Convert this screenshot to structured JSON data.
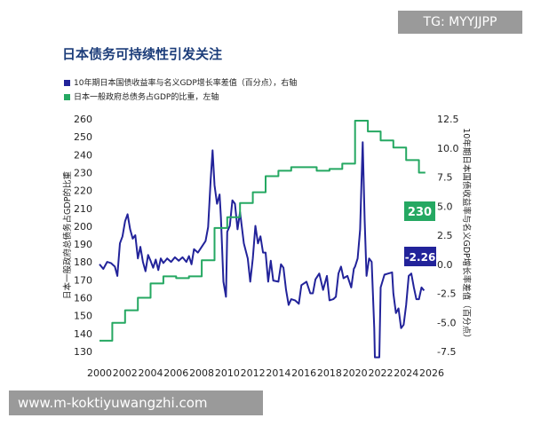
{
  "watermarks": {
    "top_right": "TG: MYYJJPP",
    "bottom_left": "www.m-koktiyuwangzhi.com"
  },
  "colors": {
    "navy": "#22239a",
    "green": "#25a862",
    "title": "#1c3d7a"
  },
  "chart_data": {
    "type": "line",
    "title": "日本债务可持续性引发关注",
    "ylabel": "日本一般政府总债务占GDP的比重",
    "y2label": "10年期日本国债收益率与名义GDP增长率差值（百分点）",
    "xlim": [
      2000,
      2026
    ],
    "ylim": [
      130,
      260
    ],
    "y2lim": [
      -7.5,
      12.5
    ],
    "x_ticks": [
      "2000",
      "2002",
      "2004",
      "2006",
      "2008",
      "2010",
      "2012",
      "2014",
      "2016",
      "2018",
      "2020",
      "2022",
      "2024",
      "2026"
    ],
    "y_ticks": [
      "260",
      "250",
      "240",
      "230",
      "220",
      "210",
      "200",
      "190",
      "180",
      "170",
      "160",
      "150",
      "140",
      "130"
    ],
    "y2_ticks": [
      "12.5",
      "10.0",
      "7.5",
      "5.0",
      "2.5",
      "0.0",
      "-2.5",
      "-5.0",
      "-7.5"
    ],
    "series": [
      {
        "name": "10年期日本国债收益率与名义GDP增长率差值（百分点），右轴",
        "axis": "right",
        "color": "#22239a",
        "end_label": "-2.26",
        "points": [
          [
            2000,
            0.0
          ],
          [
            2000.3,
            -0.4
          ],
          [
            2000.6,
            0.2
          ],
          [
            2000.9,
            0.1
          ],
          [
            2001.2,
            -0.2
          ],
          [
            2001.4,
            -1.0
          ],
          [
            2001.6,
            1.8
          ],
          [
            2001.8,
            2.4
          ],
          [
            2002.0,
            3.7
          ],
          [
            2002.2,
            4.3
          ],
          [
            2002.4,
            3.0
          ],
          [
            2002.6,
            2.2
          ],
          [
            2002.8,
            2.5
          ],
          [
            2003.0,
            0.5
          ],
          [
            2003.2,
            1.5
          ],
          [
            2003.4,
            0.2
          ],
          [
            2003.6,
            -0.6
          ],
          [
            2003.8,
            0.8
          ],
          [
            2004.0,
            0.3
          ],
          [
            2004.2,
            -0.3
          ],
          [
            2004.4,
            0.4
          ],
          [
            2004.6,
            -0.5
          ],
          [
            2004.8,
            0.5
          ],
          [
            2005.0,
            0.1
          ],
          [
            2005.3,
            0.5
          ],
          [
            2005.6,
            0.2
          ],
          [
            2005.9,
            0.6
          ],
          [
            2006.2,
            0.3
          ],
          [
            2006.5,
            0.6
          ],
          [
            2006.8,
            0.2
          ],
          [
            2007.0,
            0.7
          ],
          [
            2007.2,
            0.0
          ],
          [
            2007.4,
            1.3
          ],
          [
            2007.7,
            1.0
          ],
          [
            2008.0,
            1.5
          ],
          [
            2008.3,
            2.0
          ],
          [
            2008.5,
            3.2
          ],
          [
            2008.7,
            7.2
          ],
          [
            2008.85,
            9.8
          ],
          [
            2009.0,
            6.8
          ],
          [
            2009.2,
            5.2
          ],
          [
            2009.4,
            6.0
          ],
          [
            2009.5,
            4.0
          ],
          [
            2009.7,
            -1.5
          ],
          [
            2009.9,
            -2.8
          ],
          [
            2010.0,
            2.8
          ],
          [
            2010.2,
            3.3
          ],
          [
            2010.4,
            5.5
          ],
          [
            2010.6,
            5.2
          ],
          [
            2010.8,
            3.0
          ],
          [
            2011.0,
            4.5
          ],
          [
            2011.3,
            1.8
          ],
          [
            2011.6,
            0.5
          ],
          [
            2011.8,
            -1.5
          ],
          [
            2012.0,
            0.5
          ],
          [
            2012.2,
            3.3
          ],
          [
            2012.4,
            1.8
          ],
          [
            2012.6,
            2.4
          ],
          [
            2012.8,
            1.0
          ],
          [
            2013.0,
            1.0
          ],
          [
            2013.2,
            -1.5
          ],
          [
            2013.4,
            0.3
          ],
          [
            2013.6,
            -1.4
          ],
          [
            2014.0,
            -1.5
          ],
          [
            2014.2,
            0.0
          ],
          [
            2014.4,
            -0.3
          ],
          [
            2014.6,
            -2.2
          ],
          [
            2014.8,
            -3.5
          ],
          [
            2015.0,
            -3.0
          ],
          [
            2015.3,
            -3.1
          ],
          [
            2015.6,
            -3.4
          ],
          [
            2015.8,
            -1.8
          ],
          [
            2016.2,
            -1.5
          ],
          [
            2016.5,
            -2.5
          ],
          [
            2016.7,
            -2.5
          ],
          [
            2016.9,
            -1.3
          ],
          [
            2017.2,
            -0.8
          ],
          [
            2017.5,
            -2.2
          ],
          [
            2017.8,
            -1.0
          ],
          [
            2018.0,
            -3.1
          ],
          [
            2018.3,
            -3.0
          ],
          [
            2018.5,
            -2.8
          ],
          [
            2018.7,
            -0.8
          ],
          [
            2018.9,
            -0.2
          ],
          [
            2019.1,
            -1.2
          ],
          [
            2019.4,
            -1.0
          ],
          [
            2019.7,
            -2.0
          ],
          [
            2019.9,
            -0.4
          ],
          [
            2020.0,
            -0.2
          ],
          [
            2020.2,
            0.5
          ],
          [
            2020.4,
            3.0
          ],
          [
            2020.5,
            7.0
          ],
          [
            2020.6,
            10.5
          ],
          [
            2020.75,
            3.8
          ],
          [
            2020.9,
            -1.0
          ],
          [
            2021.1,
            0.5
          ],
          [
            2021.3,
            0.2
          ],
          [
            2021.5,
            -5.5
          ],
          [
            2021.55,
            -8.0
          ],
          [
            2021.9,
            -8.0
          ],
          [
            2022.0,
            -2.0
          ],
          [
            2022.3,
            -0.9
          ],
          [
            2022.6,
            -0.8
          ],
          [
            2022.9,
            -0.7
          ],
          [
            2023.0,
            -2.5
          ],
          [
            2023.2,
            -4.2
          ],
          [
            2023.4,
            -3.8
          ],
          [
            2023.6,
            -5.5
          ],
          [
            2023.8,
            -5.2
          ],
          [
            2024.0,
            -3.5
          ],
          [
            2024.2,
            -1.0
          ],
          [
            2024.4,
            -0.8
          ],
          [
            2024.6,
            -2.0
          ],
          [
            2024.8,
            -3.0
          ],
          [
            2025.0,
            -3.0
          ],
          [
            2025.2,
            -2.0
          ],
          [
            2025.4,
            -2.26
          ]
        ]
      },
      {
        "name": "日本一般政府总债务占GDP的比重，左轴",
        "axis": "left",
        "color": "#25a862",
        "end_label": "230",
        "points": [
          [
            2000,
            136
          ],
          [
            2001,
            136
          ],
          [
            2001,
            146
          ],
          [
            2002,
            146
          ],
          [
            2002,
            153
          ],
          [
            2003,
            153
          ],
          [
            2003,
            160
          ],
          [
            2004,
            160
          ],
          [
            2004,
            168
          ],
          [
            2005,
            168
          ],
          [
            2005,
            172
          ],
          [
            2006,
            172
          ],
          [
            2006,
            171
          ],
          [
            2007,
            171
          ],
          [
            2007,
            172
          ],
          [
            2008,
            172
          ],
          [
            2008,
            181
          ],
          [
            2009,
            181
          ],
          [
            2009,
            199
          ],
          [
            2010,
            199
          ],
          [
            2010,
            205
          ],
          [
            2011,
            205
          ],
          [
            2011,
            213
          ],
          [
            2012,
            213
          ],
          [
            2012,
            219
          ],
          [
            2013,
            219
          ],
          [
            2013,
            228
          ],
          [
            2014,
            228
          ],
          [
            2014,
            231
          ],
          [
            2015,
            231
          ],
          [
            2015,
            233
          ],
          [
            2016,
            233
          ],
          [
            2016,
            233
          ],
          [
            2017,
            233
          ],
          [
            2017,
            231
          ],
          [
            2018,
            231
          ],
          [
            2018,
            232
          ],
          [
            2019,
            232
          ],
          [
            2019,
            235
          ],
          [
            2020,
            235
          ],
          [
            2020,
            259
          ],
          [
            2021,
            259
          ],
          [
            2021,
            253
          ],
          [
            2022,
            253
          ],
          [
            2022,
            248
          ],
          [
            2023,
            248
          ],
          [
            2023,
            244
          ],
          [
            2024,
            244
          ],
          [
            2024,
            237
          ],
          [
            2025,
            237
          ],
          [
            2025,
            230
          ],
          [
            2025.5,
            230
          ]
        ]
      }
    ]
  }
}
